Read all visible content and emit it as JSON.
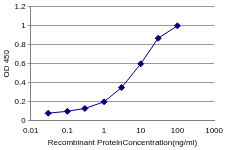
{
  "chart_data": {
    "type": "line",
    "x_label": "Recombinant ProteinConcentration(ng/ml)",
    "y_label": "OD 450",
    "x": [
      0.03,
      0.1,
      0.3,
      1,
      3,
      10,
      30,
      100
    ],
    "values": [
      0.08,
      0.1,
      0.13,
      0.2,
      0.35,
      0.6,
      0.87,
      1.0
    ],
    "color": "#000080",
    "marker": "diamond",
    "log": "x",
    "xlim": [
      0.01,
      1000
    ],
    "xticks": [
      0.01,
      0.1,
      1,
      10,
      100,
      1000
    ],
    "ylim": [
      0,
      1.2
    ],
    "yticks": [
      0,
      0.2,
      0.4,
      0.6,
      0.8,
      1,
      1.2
    ],
    "grid": "y"
  }
}
